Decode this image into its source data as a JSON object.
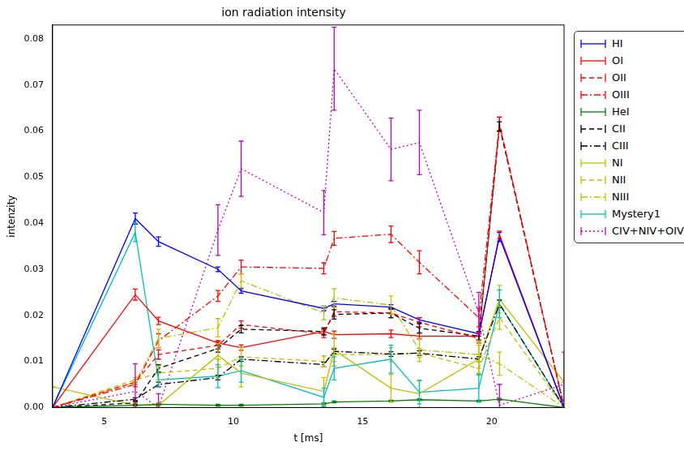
{
  "chart_data": {
    "type": "line",
    "title": "ion radiation intensity",
    "x_label": "t [ms]",
    "y_label": "intenzity",
    "x": [
      3.0,
      6.2,
      7.1,
      9.4,
      10.3,
      13.5,
      13.9,
      16.1,
      17.2,
      19.5,
      20.3,
      22.8
    ],
    "xlim": [
      3.0,
      22.8
    ],
    "xticks": [
      5,
      10,
      15,
      20
    ],
    "ylim": [
      0,
      0.083
    ],
    "yticks": [
      {
        "value": 0,
        "label": "0.00"
      },
      {
        "value": 0.01,
        "label": "0.01"
      },
      {
        "value": 0.02,
        "label": "0.02"
      },
      {
        "value": 0.03,
        "label": "0.03"
      },
      {
        "value": 0.04,
        "label": "0.04"
      },
      {
        "value": 0.05,
        "label": "0.05"
      },
      {
        "value": 0.06,
        "label": "0.06"
      },
      {
        "value": 0.07,
        "label": "0.07"
      },
      {
        "value": 0.08,
        "label": "0.08"
      }
    ],
    "grid": false,
    "legend": "right",
    "series": [
      {
        "name": "HI",
        "color": "#0000ff",
        "line_style": "solid",
        "values": [
          0,
          0.041,
          0.036,
          0.03,
          0.0253,
          0.0215,
          0.0225,
          0.0218,
          0.019,
          0.016,
          0.037,
          0
        ],
        "errors": [
          0,
          0.0012,
          0.001,
          0.0005,
          0.0005,
          0.0005,
          0.0005,
          0.0005,
          0.0005,
          0.0005,
          0.001,
          0
        ]
      },
      {
        "name": "OI",
        "color": "#ff0000",
        "line_style": "solid",
        "values": [
          0,
          0.0245,
          0.0188,
          0.014,
          0.013,
          0.0165,
          0.0158,
          0.016,
          0.0155,
          0.0155,
          0.0375,
          0
        ],
        "errors": [
          0,
          0.0012,
          0.0008,
          0.0005,
          0.0006,
          0.0006,
          0.0008,
          0.0008,
          0.0006,
          0.0008,
          0.0008,
          0
        ]
      },
      {
        "name": "OII",
        "color": "#ff0000",
        "line_style": "dashed",
        "values": [
          0,
          0.0055,
          0.0115,
          0.0135,
          0.018,
          0.016,
          0.0208,
          0.0205,
          0.0185,
          0.015,
          0.0615,
          0
        ],
        "errors": [
          0,
          0.0005,
          0.001,
          0.0008,
          0.0008,
          0.0008,
          0.001,
          0.001,
          0.001,
          0.001,
          0.0015,
          0
        ]
      },
      {
        "name": "OIII",
        "color": "#ff0000",
        "line_style": "dashdot",
        "values": [
          0,
          0.005,
          0.0145,
          0.0242,
          0.0305,
          0.0302,
          0.0367,
          0.0376,
          0.0315,
          0.0195,
          0.0615,
          0
        ],
        "errors": [
          0,
          0.0005,
          0.0015,
          0.0012,
          0.0015,
          0.0012,
          0.0015,
          0.0018,
          0.0025,
          0.002,
          0.0015,
          0
        ]
      },
      {
        "name": "HeI",
        "color": "#008000",
        "line_style": "solid",
        "values": [
          0,
          0.0005,
          0.0007,
          0.0005,
          0.0005,
          0.0008,
          0.0012,
          0.0014,
          0.0017,
          0.0014,
          0.0018,
          0
        ],
        "errors": [
          0,
          0.0002,
          0.0002,
          0.0002,
          0.0002,
          0.0002,
          0.0002,
          0.0002,
          0.0002,
          0.0002,
          0.0002,
          0
        ]
      },
      {
        "name": "CII",
        "color": "#000000",
        "line_style": "dashed",
        "values": [
          0,
          0.001,
          0.0085,
          0.0128,
          0.017,
          0.0165,
          0.0202,
          0.0205,
          0.0172,
          0.0155,
          0.061,
          0
        ],
        "errors": [
          0,
          0.0003,
          0.0008,
          0.0008,
          0.0008,
          0.0008,
          0.001,
          0.001,
          0.001,
          0.001,
          0.001,
          0
        ]
      },
      {
        "name": "CIII",
        "color": "#000000",
        "line_style": "dashdot",
        "values": [
          0,
          0.0018,
          0.005,
          0.0065,
          0.0105,
          0.0093,
          0.0122,
          0.0116,
          0.0118,
          0.0105,
          0.0225,
          0
        ],
        "errors": [
          0,
          0.0003,
          0.0005,
          0.0005,
          0.0005,
          0.0005,
          0.0005,
          0.0005,
          0.0005,
          0.0005,
          0.0008,
          0
        ]
      },
      {
        "name": "NI",
        "color": "#bfbf00",
        "line_style": "solid",
        "values": [
          0.0045,
          0.0005,
          0.0005,
          0.0113,
          0.0075,
          0.0035,
          0.0125,
          0.0042,
          0.003,
          0.0105,
          0.0235,
          0.0055
        ],
        "errors": [
          0,
          0.0005,
          0.0005,
          0.0025,
          0.003,
          0.003,
          0.0035,
          0.003,
          0.003,
          0.003,
          0.003,
          0
        ]
      },
      {
        "name": "NII",
        "color": "#bfbf00",
        "line_style": "dashed",
        "values": [
          0,
          0.006,
          0.0075,
          0.0085,
          0.011,
          0.01,
          0.0115,
          0.0115,
          0.0118,
          0.0085,
          0.0195,
          0
        ],
        "errors": [
          0,
          0.0005,
          0.0015,
          0.002,
          0.002,
          0.0012,
          0.0015,
          0.0015,
          0.001,
          0.0015,
          0.0025,
          0
        ]
      },
      {
        "name": "NIII",
        "color": "#bfbf00",
        "line_style": "dashdot",
        "values": [
          0,
          0.0055,
          0.015,
          0.0173,
          0.0275,
          0.0205,
          0.0238,
          0.0222,
          0.0125,
          0.0115,
          0.0095,
          0
        ],
        "errors": [
          0,
          0.0005,
          0.002,
          0.002,
          0.0015,
          0.0015,
          0.002,
          0.002,
          0.0025,
          0.003,
          0.0025,
          0
        ]
      },
      {
        "name": "Mystery1",
        "color": "#00bfbf",
        "line_style": "solid",
        "values": [
          0,
          0.038,
          0.006,
          0.0068,
          0.008,
          0.0022,
          0.0085,
          0.0105,
          0.0033,
          0.0042,
          0.0225,
          0
        ],
        "errors": [
          0,
          0.002,
          0.0015,
          0.0025,
          0.0025,
          0.002,
          0.0025,
          0.003,
          0.0025,
          0.003,
          0.003,
          0
        ]
      },
      {
        "name": "CIV+NIV+OIV",
        "color": "#bf00bf",
        "line_style": "dotted",
        "values": [
          0,
          0.0035,
          0,
          0.0385,
          0.0518,
          0.0423,
          0.0735,
          0.056,
          0.0575,
          0.0205,
          0.0005,
          0.005
        ],
        "errors": [
          0,
          0.006,
          0.003,
          0.0055,
          0.006,
          0.0048,
          0.009,
          0.0068,
          0.007,
          0.0045,
          0.0045,
          0.007
        ]
      }
    ]
  }
}
